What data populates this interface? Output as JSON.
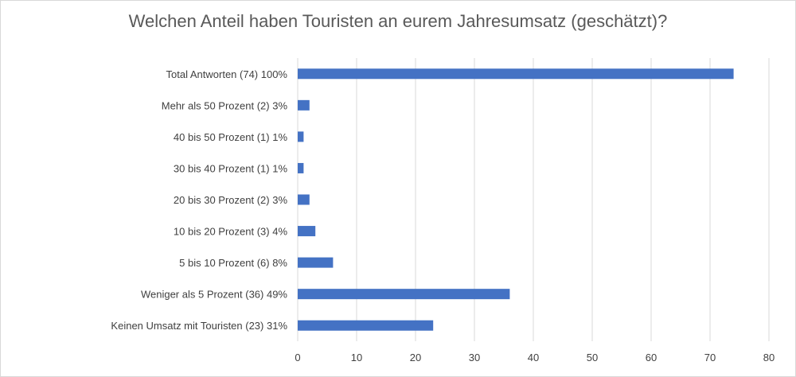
{
  "chart_data": {
    "type": "bar",
    "orientation": "horizontal",
    "title": "Welchen Anteil haben Touristen an eurem Jahresumsatz (geschätzt)?",
    "categories": [
      "Total Antworten (74) 100%",
      "Mehr als 50 Prozent (2) 3%",
      "40 bis 50 Prozent (1) 1%",
      "30 bis 40 Prozent (1) 1%",
      "20 bis 30 Prozent (2) 3%",
      "10 bis 20 Prozent (3) 4%",
      "5 bis 10 Prozent (6) 8%",
      "Weniger als 5 Prozent (36) 49%",
      "Keinen Umsatz mit Touristen (23) 31%"
    ],
    "values": [
      74,
      2,
      1,
      1,
      2,
      3,
      6,
      36,
      23
    ],
    "xlim": [
      0,
      80
    ],
    "xticks": [
      "0",
      "10",
      "20",
      "30",
      "40",
      "50",
      "60",
      "70",
      "80"
    ],
    "xlabel": "",
    "ylabel": "",
    "grid": true,
    "legend": "none",
    "bar_color": "#4472c4",
    "grid_color": "#d9d9d9"
  }
}
